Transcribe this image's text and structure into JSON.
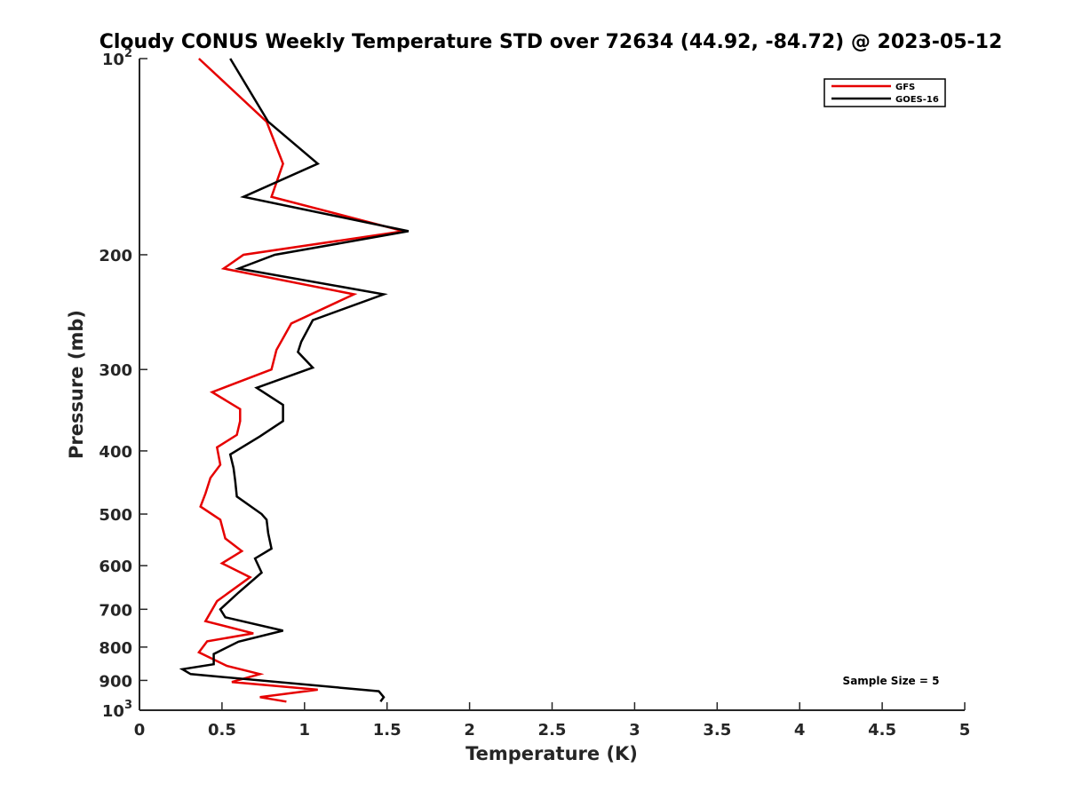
{
  "chart_data": {
    "type": "line",
    "title": "Cloudy CONUS Weekly Temperature STD over 72634 (44.92, -84.72) @ 2023-05-12",
    "xlabel": "Temperature (K)",
    "ylabel": "Pressure (mb)",
    "xlim": [
      0,
      5
    ],
    "ylim": [
      100,
      1000
    ],
    "y_scale": "log",
    "y_reversed": true,
    "grid": false,
    "legend_position": "top-right",
    "x_ticks": [
      {
        "value": 0,
        "label": "0"
      },
      {
        "value": 0.5,
        "label": "0.5"
      },
      {
        "value": 1,
        "label": "1"
      },
      {
        "value": 1.5,
        "label": "1.5"
      },
      {
        "value": 2,
        "label": "2"
      },
      {
        "value": 2.5,
        "label": "2.5"
      },
      {
        "value": 3,
        "label": "3"
      },
      {
        "value": 3.5,
        "label": "3.5"
      },
      {
        "value": 4,
        "label": "4"
      },
      {
        "value": 4.5,
        "label": "4.5"
      },
      {
        "value": 5,
        "label": "5"
      }
    ],
    "y_ticks": [
      {
        "value": 100,
        "base": "10",
        "exp": "2"
      },
      {
        "value": 200,
        "label": "200"
      },
      {
        "value": 300,
        "label": "300"
      },
      {
        "value": 400,
        "label": "400"
      },
      {
        "value": 500,
        "label": "500"
      },
      {
        "value": 600,
        "label": "600"
      },
      {
        "value": 700,
        "label": "700"
      },
      {
        "value": 800,
        "label": "800"
      },
      {
        "value": 900,
        "label": "900"
      },
      {
        "value": 1000,
        "base": "10",
        "exp": "3"
      }
    ],
    "series": [
      {
        "name": "GFS",
        "color": "#e60000",
        "points": [
          [
            0.36,
            100
          ],
          [
            0.77,
            125
          ],
          [
            0.87,
            145
          ],
          [
            0.8,
            163
          ],
          [
            1.6,
            184
          ],
          [
            0.63,
            200
          ],
          [
            0.51,
            210
          ],
          [
            1.3,
            230
          ],
          [
            0.92,
            255
          ],
          [
            0.83,
            280
          ],
          [
            0.8,
            300
          ],
          [
            0.44,
            325
          ],
          [
            0.61,
            345
          ],
          [
            0.61,
            360
          ],
          [
            0.59,
            378
          ],
          [
            0.47,
            395
          ],
          [
            0.49,
            420
          ],
          [
            0.43,
            440
          ],
          [
            0.4,
            465
          ],
          [
            0.37,
            487
          ],
          [
            0.49,
            510
          ],
          [
            0.52,
            545
          ],
          [
            0.62,
            570
          ],
          [
            0.5,
            595
          ],
          [
            0.67,
            625
          ],
          [
            0.47,
            680
          ],
          [
            0.4,
            730
          ],
          [
            0.69,
            762
          ],
          [
            0.41,
            784
          ],
          [
            0.36,
            815
          ],
          [
            0.53,
            855
          ],
          [
            0.73,
            880
          ],
          [
            0.56,
            905
          ],
          [
            1.08,
            930
          ],
          [
            0.73,
            955
          ],
          [
            0.89,
            970
          ]
        ]
      },
      {
        "name": "GOES-16",
        "color": "#000000",
        "points": [
          [
            0.55,
            100
          ],
          [
            0.78,
            125
          ],
          [
            1.08,
            145
          ],
          [
            0.63,
            163
          ],
          [
            1.63,
            184
          ],
          [
            0.82,
            200
          ],
          [
            0.6,
            210
          ],
          [
            1.48,
            230
          ],
          [
            1.05,
            252
          ],
          [
            0.98,
            272
          ],
          [
            0.96,
            282
          ],
          [
            1.05,
            298
          ],
          [
            0.71,
            320
          ],
          [
            0.87,
            340
          ],
          [
            0.87,
            360
          ],
          [
            0.73,
            380
          ],
          [
            0.55,
            405
          ],
          [
            0.57,
            425
          ],
          [
            0.58,
            445
          ],
          [
            0.59,
            470
          ],
          [
            0.74,
            500
          ],
          [
            0.77,
            510
          ],
          [
            0.78,
            535
          ],
          [
            0.8,
            565
          ],
          [
            0.7,
            585
          ],
          [
            0.74,
            615
          ],
          [
            0.6,
            660
          ],
          [
            0.49,
            700
          ],
          [
            0.52,
            720
          ],
          [
            0.87,
            755
          ],
          [
            0.6,
            785
          ],
          [
            0.45,
            820
          ],
          [
            0.45,
            850
          ],
          [
            0.26,
            865
          ],
          [
            0.31,
            880
          ],
          [
            1.45,
            935
          ],
          [
            1.48,
            955
          ],
          [
            1.46,
            970
          ]
        ]
      }
    ],
    "annotation": "Sample Size = 5"
  }
}
